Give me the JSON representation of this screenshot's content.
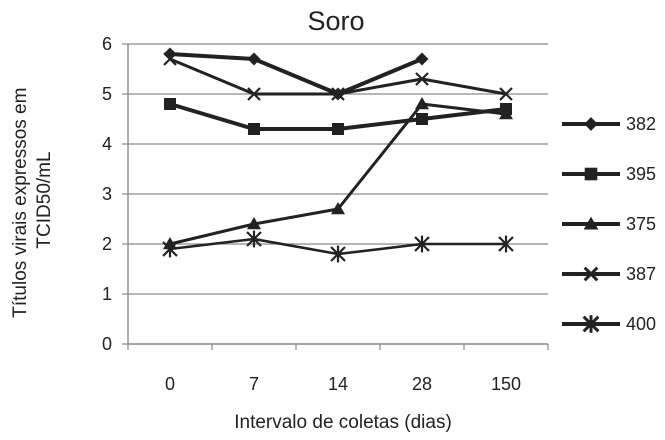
{
  "chart_data": {
    "type": "line",
    "title": "Soro",
    "xlabel": "Intervalo de coletas (dias)",
    "ylabel": "Títulos virais expressos em TCID50/mL",
    "categories": [
      "0",
      "7",
      "14",
      "28",
      "150"
    ],
    "yticks": [
      "0",
      "1",
      "2",
      "3",
      "4",
      "5",
      "6"
    ],
    "ylim": [
      0,
      6
    ],
    "grid": "horizontal",
    "legend_position": "right",
    "series": [
      {
        "name": "382",
        "marker": "diamond",
        "values": [
          5.8,
          5.7,
          5.0,
          5.7,
          null
        ]
      },
      {
        "name": "395",
        "marker": "square",
        "values": [
          4.8,
          4.3,
          4.3,
          4.5,
          4.7
        ]
      },
      {
        "name": "375",
        "marker": "triangle",
        "values": [
          2.0,
          2.4,
          2.7,
          4.8,
          4.6
        ]
      },
      {
        "name": "387",
        "marker": "x",
        "values": [
          5.7,
          5.0,
          5.0,
          5.3,
          5.0
        ]
      },
      {
        "name": "400",
        "marker": "star",
        "values": [
          1.9,
          2.1,
          1.8,
          2.0,
          2.0
        ]
      }
    ]
  }
}
